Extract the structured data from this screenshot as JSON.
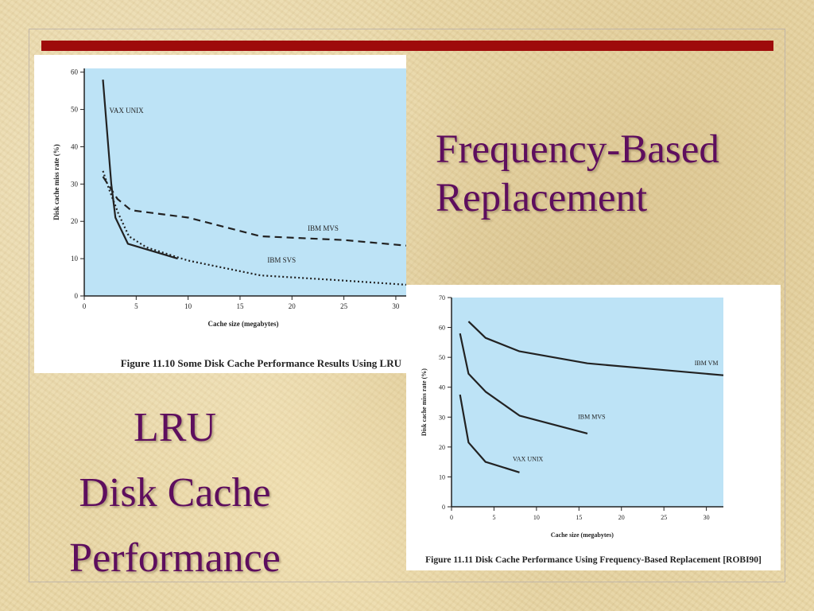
{
  "slide": {
    "title_lines": [
      "Frequency-Based",
      "Replacement"
    ],
    "subtitle_lines": [
      "LRU",
      "Disk Cache",
      "Performance"
    ]
  },
  "colors": {
    "background": "#e9d7a6",
    "accent_bar": "#9e0b0b",
    "title_text": "#5e0e5e",
    "plot_background": "#bde3f6",
    "series_line": "#222222"
  },
  "chart_data": [
    {
      "type": "line",
      "caption": "Figure 11.10  Some Disk Cache Performance Results Using LRU",
      "xlabel": "Cache size (megabytes)",
      "ylabel": "Disk cache miss rate (%)",
      "xlim": [
        0,
        31
      ],
      "ylim": [
        0,
        61
      ],
      "xticks": [
        0,
        5,
        10,
        15,
        20,
        25,
        30
      ],
      "yticks": [
        0,
        10,
        20,
        30,
        40,
        50,
        60
      ],
      "grid": false,
      "series": [
        {
          "name": "VAX UNIX",
          "style": "solid",
          "x": [
            1.8,
            2.6,
            3,
            4.2,
            9
          ],
          "y": [
            58,
            30,
            21,
            14,
            10
          ]
        },
        {
          "name": "IBM MVS",
          "style": "dashed",
          "x": [
            1.8,
            3.2,
            4.5,
            10,
            17,
            25,
            31
          ],
          "y": [
            32,
            26,
            23,
            21,
            16,
            15,
            13.5
          ]
        },
        {
          "name": "IBM SVS",
          "style": "dotted",
          "x": [
            1.8,
            2.4,
            3.3,
            4.3,
            6,
            10,
            17,
            24,
            31
          ],
          "y": [
            33.5,
            28.5,
            22,
            16,
            13,
            9.5,
            5.5,
            4.3,
            3
          ]
        }
      ]
    },
    {
      "type": "line",
      "caption": "Figure 11.11  Disk Cache Performance Using Frequency-Based Replacement [ROBI90]",
      "xlabel": "Cache size (megabytes)",
      "ylabel": "Disk cache miss rate (%)",
      "xlim": [
        0,
        32
      ],
      "ylim": [
        0,
        70
      ],
      "xticks": [
        0,
        5,
        10,
        15,
        20,
        25,
        30
      ],
      "yticks": [
        0,
        10,
        20,
        30,
        40,
        50,
        60,
        70
      ],
      "grid": false,
      "series": [
        {
          "name": "IBM VM",
          "style": "solid",
          "x": [
            2,
            4,
            8,
            16,
            24,
            32
          ],
          "y": [
            62,
            56.5,
            52,
            48,
            46,
            44
          ]
        },
        {
          "name": "IBM MVS",
          "style": "solid",
          "x": [
            1,
            2,
            4,
            8,
            16
          ],
          "y": [
            58,
            44.5,
            38.5,
            30.5,
            24.5
          ]
        },
        {
          "name": "VAX UNIX",
          "style": "solid",
          "x": [
            1,
            2,
            4,
            8
          ],
          "y": [
            37.5,
            21.5,
            15,
            11.5
          ]
        }
      ]
    }
  ]
}
